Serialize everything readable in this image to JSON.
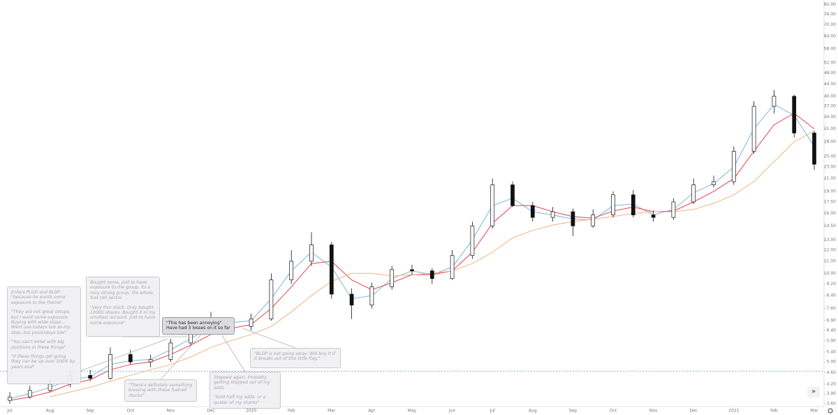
{
  "chart_data": {
    "type": "candlestick",
    "log_scale": true,
    "categories": [
      "Jul",
      null,
      "Aug",
      null,
      "Sep",
      null,
      "Oct",
      null,
      "Nov",
      null,
      "Dec",
      null,
      "2020",
      null,
      "Feb",
      null,
      "Mar",
      null,
      "Apr",
      null,
      "May",
      null,
      "Jun",
      null,
      "Jul",
      null,
      "Aug",
      null,
      "Sep",
      null,
      "Oct",
      null,
      "Nov",
      null,
      "Dec",
      null,
      "2021",
      null,
      "Feb",
      null,
      "Mar"
    ],
    "open": [
      3.7,
      3.8,
      4.0,
      4.2,
      4.5,
      4.4,
      5.3,
      5.0,
      5.1,
      5.8,
      6.3,
      7.0,
      6.6,
      7.0,
      9.5,
      11.0,
      12.5,
      8.5,
      7.8,
      9.0,
      10.3,
      10.2,
      9.6,
      11.5,
      14.5,
      20.0,
      17.0,
      15.5,
      16.2,
      14.5,
      15.8,
      18.5,
      15.8,
      15.5,
      17.5,
      20.0,
      20.5,
      26.0,
      37.0,
      40.0,
      30.0
    ],
    "high": [
      3.95,
      4.15,
      4.35,
      4.7,
      4.7,
      5.6,
      5.5,
      5.3,
      6.0,
      6.6,
      7.4,
      7.1,
      7.3,
      10.0,
      12.0,
      13.8,
      12.8,
      8.9,
      9.3,
      10.6,
      10.7,
      10.4,
      12.0,
      15.0,
      21.0,
      20.5,
      17.5,
      16.8,
      16.6,
      16.5,
      19.0,
      19.2,
      16.4,
      18.0,
      21.0,
      21.5,
      27.0,
      38.5,
      42.0,
      40.5,
      30.5
    ],
    "low": [
      3.6,
      3.75,
      3.95,
      4.1,
      4.3,
      4.35,
      4.9,
      4.8,
      5.0,
      5.7,
      6.2,
      6.3,
      6.4,
      6.9,
      9.2,
      10.6,
      8.2,
      7.0,
      7.6,
      8.8,
      9.9,
      9.2,
      9.5,
      11.2,
      14.2,
      16.8,
      15.0,
      15.0,
      13.4,
      14.3,
      15.5,
      15.5,
      15.0,
      15.2,
      17.2,
      19.6,
      20.0,
      25.5,
      35.0,
      29.0,
      22.5
    ],
    "close": [
      3.8,
      4.0,
      4.2,
      4.5,
      4.4,
      5.3,
      5.0,
      5.1,
      5.8,
      6.3,
      7.0,
      6.6,
      7.0,
      9.5,
      11.0,
      12.5,
      8.5,
      7.8,
      9.0,
      10.3,
      10.2,
      9.6,
      11.5,
      14.5,
      20.0,
      17.0,
      15.5,
      16.2,
      14.5,
      15.8,
      18.5,
      15.8,
      15.5,
      17.5,
      20.0,
      20.5,
      26.0,
      37.0,
      40.0,
      30.0,
      23.5
    ],
    "lines": [
      {
        "color": "#7fb2e8",
        "values": [
          3.75,
          3.9,
          4.1,
          4.35,
          4.45,
          4.9,
          5.05,
          5.1,
          5.5,
          6.0,
          6.6,
          6.8,
          6.9,
          8.2,
          10.2,
          11.8,
          10.5,
          8.2,
          8.4,
          9.6,
          10.2,
          9.9,
          10.5,
          13.0,
          17.0,
          18.0,
          16.2,
          15.8,
          15.3,
          15.2,
          17.0,
          17.2,
          15.8,
          16.5,
          18.8,
          20.2,
          23.0,
          31.0,
          37.5,
          34.5,
          27.0
        ]
      },
      {
        "color": "#e5434f",
        "values": [
          3.7,
          3.8,
          3.95,
          4.2,
          4.35,
          4.7,
          4.9,
          5.0,
          5.3,
          5.7,
          6.2,
          6.5,
          6.7,
          7.6,
          9.0,
          10.8,
          11.0,
          9.5,
          8.8,
          9.3,
          9.9,
          9.9,
          10.2,
          11.8,
          14.8,
          17.0,
          17.0,
          16.2,
          15.6,
          15.4,
          16.3,
          16.8,
          16.2,
          16.3,
          17.5,
          19.0,
          21.0,
          26.0,
          32.0,
          35.0,
          31.0
        ]
      },
      {
        "color": "#f4b183",
        "values": [
          null,
          null,
          3.8,
          3.95,
          4.1,
          4.3,
          4.5,
          4.7,
          4.9,
          5.2,
          5.6,
          5.9,
          6.2,
          6.6,
          7.4,
          8.4,
          9.4,
          10.0,
          10.0,
          9.8,
          9.9,
          10.0,
          10.2,
          10.8,
          11.8,
          13.2,
          14.0,
          14.6,
          15.0,
          15.3,
          15.6,
          16.0,
          16.2,
          16.2,
          16.5,
          17.3,
          18.5,
          20.5,
          24.0,
          28.0,
          30.5
        ]
      }
    ],
    "hline": 4.65,
    "ylim": [
      3.3,
      85
    ],
    "yticks": [
      {
        "value": 3.6,
        "label": "3.60"
      },
      {
        "value": 3.9,
        "label": "3.90"
      },
      {
        "value": 4.2,
        "label": "4.20"
      },
      {
        "value": 4.6,
        "label": "4.60"
      },
      {
        "value": 5,
        "label": "5.00"
      },
      {
        "value": 5.4,
        "label": "5.40"
      },
      {
        "value": 5.9,
        "label": "5.90"
      },
      {
        "value": 6.4,
        "label": "6.40"
      },
      {
        "value": 6.9,
        "label": "6.90"
      },
      {
        "value": 7.6,
        "label": "7.60"
      },
      {
        "value": 8.4,
        "label": "8.40"
      },
      {
        "value": 9.2,
        "label": "9.20"
      },
      {
        "value": 10,
        "label": "10.00"
      },
      {
        "value": 11,
        "label": "11.00"
      },
      {
        "value": 12,
        "label": "12.00"
      },
      {
        "value": 13,
        "label": "13.00"
      },
      {
        "value": 14.5,
        "label": "14.50"
      },
      {
        "value": 16,
        "label": "16.00"
      },
      {
        "value": 17.5,
        "label": "17.50"
      },
      {
        "value": 19,
        "label": "19.00"
      },
      {
        "value": 21,
        "label": "21.00"
      },
      {
        "value": 23,
        "label": "23.00"
      },
      {
        "value": 25,
        "label": "25.00"
      },
      {
        "value": 28,
        "label": "28.00"
      },
      {
        "value": 31,
        "label": "31.00"
      },
      {
        "value": 34,
        "label": "34.00"
      },
      {
        "value": 37,
        "label": "37.00"
      },
      {
        "value": 40,
        "label": "40.00"
      },
      {
        "value": 44,
        "label": "44.00"
      },
      {
        "value": 48,
        "label": "48.00"
      },
      {
        "value": 52,
        "label": "52.00"
      },
      {
        "value": 58,
        "label": "58.00"
      },
      {
        "value": 64,
        "label": "64.00"
      },
      {
        "value": 70,
        "label": "70.00"
      },
      {
        "value": 76,
        "label": "76.00"
      },
      {
        "value": 82,
        "label": "82.00"
      }
    ],
    "annotations": [
      [
        "Enters PLUG and BLDP \"because he wants some exposure to the theme\"",
        "\"They are not great setups, but I want some exposure. Buying with wide stops... Want use todays low as my stop, but yesterdays low\"",
        "\"You can't enter with big positions in these things\"",
        "\"If these things get going they can be up over 300% by years end\""
      ],
      [
        "Bought some, just to have exposure to the group. Its a very strong group, the whole fuel cell sector.",
        "\"Very thin stock. Only bought 12000 shares. Bought it in my smallest account. Just to have some exposure\""
      ],
      [
        "\"This has been annoying\" Have had 3 losses on it so far"
      ],
      [
        "\"There's definitely something brewing with these fuelcell stocks\""
      ],
      [
        "Stopped again. Probably getting stopped out of my adds",
        "\"Sold half my adds, or a quater of my shares\""
      ],
      [
        "\"BLDP is not going away. Will buy it if it breaks out of this little flag.\""
      ]
    ]
  }
}
